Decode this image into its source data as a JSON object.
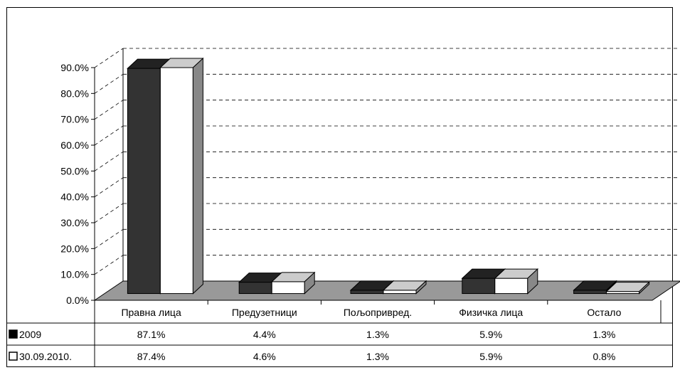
{
  "chart_data": {
    "type": "bar",
    "categories": [
      "Правна лица",
      "Предузетници",
      "Пољопривред.",
      "Физичка лица",
      "Остало"
    ],
    "series": [
      {
        "name": "2009",
        "values": [
          87.1,
          4.4,
          1.3,
          5.9,
          1.3
        ],
        "labels": [
          "87.1%",
          "4.4%",
          "1.3%",
          "5.9%",
          "1.3%"
        ],
        "color": "#333333"
      },
      {
        "name": "30.09.2010.",
        "values": [
          87.4,
          4.6,
          1.3,
          5.9,
          0.8
        ],
        "labels": [
          "87.4%",
          "4.6%",
          "1.3%",
          "5.9%",
          "0.8%"
        ],
        "color": "#ffffff"
      }
    ],
    "y_ticks": [
      "0.0%",
      "10.0%",
      "20.0%",
      "30.0%",
      "40.0%",
      "50.0%",
      "60.0%",
      "70.0%",
      "80.0%",
      "90.0%"
    ],
    "ylim": [
      0,
      90
    ],
    "grid": true,
    "legend": "data-table",
    "title": "",
    "xlabel": "",
    "ylabel": ""
  }
}
